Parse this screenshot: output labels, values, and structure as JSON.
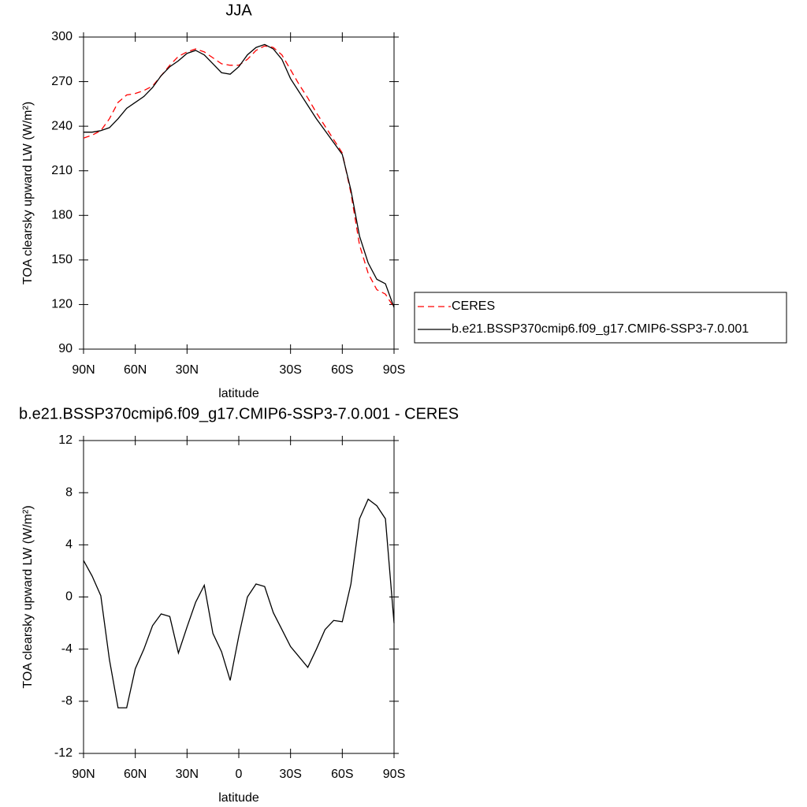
{
  "chart_data": [
    {
      "type": "line",
      "title": "JJA",
      "xlabel": "latitude",
      "ylabel": "TOA clearsky upward LW (W/m²)",
      "x": [
        90,
        85,
        80,
        75,
        70,
        65,
        60,
        55,
        50,
        45,
        40,
        35,
        30,
        25,
        20,
        15,
        10,
        5,
        0,
        -5,
        -10,
        -15,
        -20,
        -25,
        -30,
        -35,
        -40,
        -45,
        -50,
        -55,
        -60,
        -65,
        -70,
        -75,
        -80,
        -85,
        -90
      ],
      "series": [
        {
          "name": "CERES",
          "color": "#ff0000",
          "dashed": true,
          "values": [
            232,
            234,
            237,
            245,
            256,
            261,
            262,
            264,
            267,
            274,
            281,
            287,
            290,
            292,
            290,
            286,
            282,
            281,
            281,
            285,
            291,
            294,
            293,
            288,
            278,
            268,
            259,
            249,
            240,
            231,
            222,
            195,
            160,
            141,
            130,
            127,
            118
          ]
        },
        {
          "name": "b.e21.BSSP370cmip6.f09_g17.CMIP6-SSP3-7.0.001",
          "color": "#000000",
          "dashed": false,
          "values": [
            236,
            236,
            237,
            239,
            245,
            252,
            256,
            260,
            266,
            274,
            280,
            284,
            289,
            291,
            288,
            282,
            276,
            275,
            280,
            288,
            293,
            295,
            292,
            285,
            272,
            263,
            254,
            245,
            237,
            229,
            221,
            197,
            166,
            148,
            137,
            134,
            118
          ]
        }
      ],
      "xlim": [
        90,
        -90
      ],
      "xticks": [
        {
          "value": 90,
          "label": "90N"
        },
        {
          "value": 60,
          "label": "60N"
        },
        {
          "value": 30,
          "label": "30N"
        },
        {
          "value": -30,
          "label": "30S"
        },
        {
          "value": -60,
          "label": "60S"
        },
        {
          "value": -90,
          "label": "90S"
        }
      ],
      "ylim": [
        90,
        300
      ],
      "yticks": [
        90,
        120,
        150,
        180,
        210,
        240,
        270,
        300
      ],
      "legend": "outside-right"
    },
    {
      "type": "line",
      "title": "b.e21.BSSP370cmip6.f09_g17.CMIP6-SSP3-7.0.001 - CERES",
      "xlabel": "latitude",
      "ylabel": "TOA clearsky upward LW (W/m²)",
      "x": [
        90,
        85,
        80,
        75,
        70,
        65,
        60,
        55,
        50,
        45,
        40,
        35,
        30,
        25,
        20,
        15,
        10,
        5,
        0,
        -5,
        -10,
        -15,
        -20,
        -25,
        -30,
        -35,
        -40,
        -45,
        -50,
        -55,
        -60,
        -65,
        -70,
        -75,
        -80,
        -85,
        -90
      ],
      "values": [
        2.8,
        1.6,
        0.1,
        -4.8,
        -8.5,
        -8.5,
        -5.5,
        -4,
        -2.2,
        -1.3,
        -1.5,
        -4.3,
        -2.3,
        -0.4,
        0.9,
        -2.8,
        -4.2,
        -6.4,
        -3,
        0,
        1,
        0.8,
        -1.2,
        -2.5,
        -3.8,
        -4.6,
        -5.4,
        -4,
        -2.5,
        -1.8,
        -1.9,
        1,
        6,
        7.5,
        7,
        6,
        -2
      ],
      "color": "#000000",
      "xlim": [
        90,
        -90
      ],
      "xticks": [
        {
          "value": 90,
          "label": "90N"
        },
        {
          "value": 60,
          "label": "60N"
        },
        {
          "value": 30,
          "label": "30N"
        },
        0,
        {
          "value": -30,
          "label": "30S"
        },
        {
          "value": -60,
          "label": "60S"
        },
        {
          "value": -90,
          "label": "90S"
        }
      ],
      "ylim": [
        -12,
        12
      ],
      "yticks": [
        -12,
        -8,
        -4,
        0,
        4,
        8,
        12
      ]
    }
  ]
}
